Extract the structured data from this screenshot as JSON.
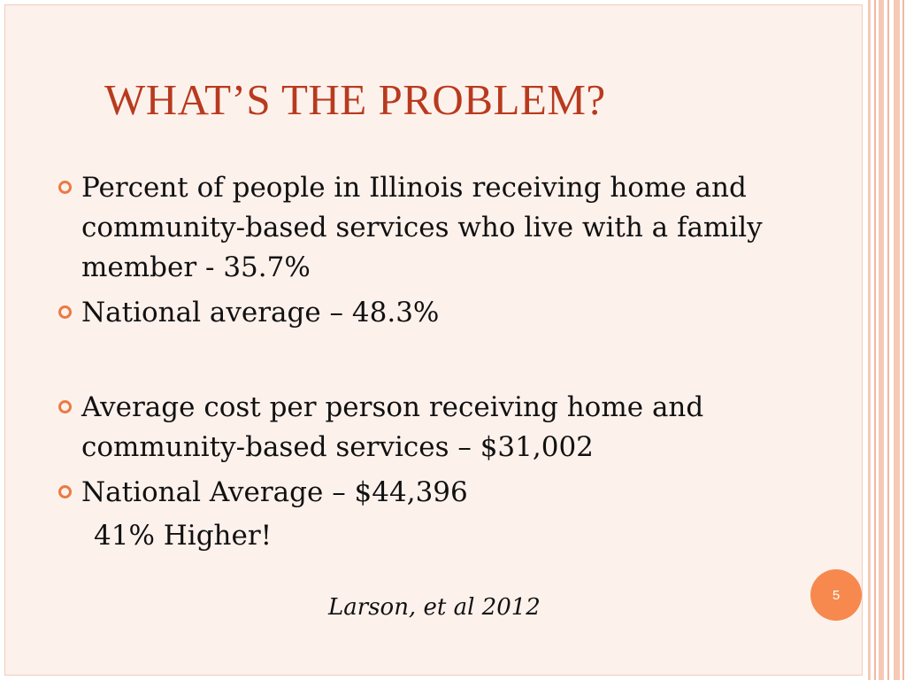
{
  "slide": {
    "title": "WHAT’S THE PROBLEM?",
    "bullets": [
      "Percent of people in Illinois receiving home and community-based services who live with a family member  - 35.7%",
      "National average – 48.3%",
      "Average cost per person receiving home and community-based services – $31,002",
      "National Average – $44,396"
    ],
    "bullet_icon": "hollow-circle-bullet-icon",
    "emphasis_line": "41% Higher!",
    "citation": "Larson, et al 2012",
    "page_number": "5",
    "colors": {
      "title": "#b83a1e",
      "bullet_marker": "#ea7a45",
      "page_badge": "#f7894e",
      "background": "#fdf1ec"
    }
  }
}
